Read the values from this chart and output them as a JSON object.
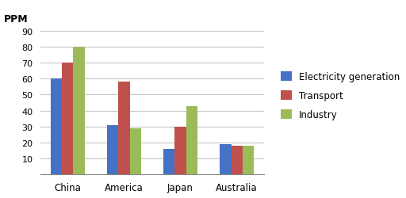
{
  "categories": [
    "China",
    "America",
    "Japan",
    "Australia"
  ],
  "series": [
    {
      "label": "Electricity generation",
      "values": [
        60,
        31,
        16,
        19
      ],
      "color": "#4472C4"
    },
    {
      "label": "Transport",
      "values": [
        70,
        58,
        30,
        18
      ],
      "color": "#C0504D"
    },
    {
      "label": "Industry",
      "values": [
        80,
        29,
        43,
        18
      ],
      "color": "#9BBB59"
    }
  ],
  "ylabel": "PPM",
  "ylim": [
    0,
    90
  ],
  "yticks": [
    10,
    20,
    30,
    40,
    50,
    60,
    70,
    80,
    90
  ],
  "background_color": "#FFFFFF",
  "grid_color": "#C8C8C8",
  "bar_width": 0.2,
  "figsize": [
    5.12,
    2.51
  ],
  "dpi": 100
}
